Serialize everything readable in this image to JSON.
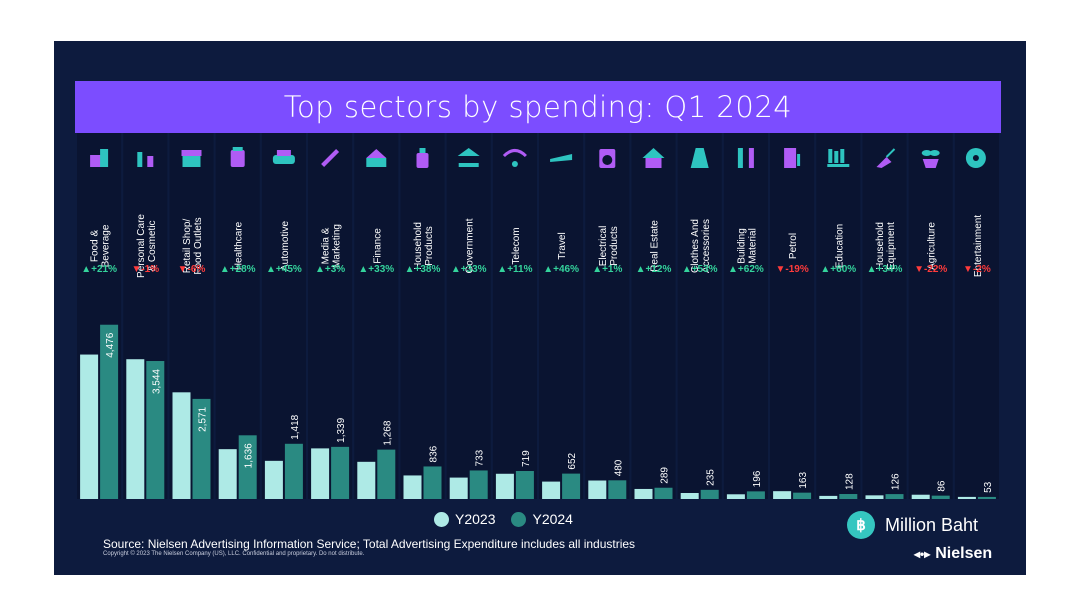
{
  "title": "Top sectors by spending: Q1 2024",
  "source_text": "Source: Nielsen Advertising Information Service; Total Advertising Expenditure includes all industries",
  "copyright_text": "Copyright © 2023 The Nielsen Company (US), LLC. Confidential and proprietary. Do not distribute.",
  "unit_label": "Million Baht",
  "currency_symbol": "฿",
  "brand": "Nielsen",
  "colors": {
    "y2023": "#aeeae6",
    "y2024": "#2a8a82",
    "title_bar": "#7c4dff",
    "background": "#0d1b3e",
    "up": "#34d39c",
    "down": "#ff3b3b",
    "icon": "#2ec4c0",
    "icon_accent": "#b05cf5"
  },
  "chart_data": {
    "type": "bar",
    "title": "Top sectors by spending: Q1 2024",
    "categories": [
      [
        "Food &",
        "Beverage"
      ],
      [
        "Personal Care",
        "& Cosmetic"
      ],
      [
        "Retail Shop/",
        "Food Outlets"
      ],
      [
        "Healthcare"
      ],
      [
        "Automotive"
      ],
      [
        "Media &",
        "Marketing"
      ],
      [
        "Finance"
      ],
      [
        "Household",
        "Products"
      ],
      [
        "Government"
      ],
      [
        "Telecom"
      ],
      [
        "Travel"
      ],
      [
        "Electrical",
        "Products"
      ],
      [
        "Real Estate"
      ],
      [
        "Clothes And",
        "Accessories"
      ],
      [
        "Building",
        "Material"
      ],
      [
        "Petrol"
      ],
      [
        "Education"
      ],
      [
        "Household",
        "Equipment"
      ],
      [
        "Agriculture"
      ],
      [
        "Entertainment"
      ]
    ],
    "icons": [
      "food-drink-icon",
      "cosmetics-icon",
      "store-icon",
      "medicine-icon",
      "car-icon",
      "megaphone-icon",
      "credit-card-icon",
      "detergent-icon",
      "government-building-icon",
      "wifi-icon",
      "airplane-icon",
      "washing-machine-icon",
      "house-icon",
      "dress-icon",
      "tools-icon",
      "fuel-pump-icon",
      "books-icon",
      "broom-icon",
      "plant-icon",
      "film-reel-icon"
    ],
    "changes": [
      "+21%",
      "-1%",
      "-6%",
      "+28%",
      "+45%",
      "+3%",
      "+33%",
      "+38%",
      "+33%",
      "+11%",
      "+46%",
      "+1%",
      "+12%",
      "+53%",
      "+62%",
      "-19%",
      "+60%",
      "+34%",
      "-22%",
      "-2%"
    ],
    "series": [
      {
        "name": "Y2023",
        "values": [
          3710,
          3590,
          2740,
          1280,
          980,
          1300,
          955,
          605,
          550,
          648,
          447,
          475,
          258,
          154,
          121,
          201,
          80,
          94,
          110,
          54
        ]
      },
      {
        "name": "Y2024",
        "values": [
          4476,
          3544,
          2571,
          1636,
          1418,
          1339,
          1268,
          836,
          733,
          719,
          652,
          480,
          289,
          235,
          196,
          163,
          128,
          126,
          86,
          53
        ]
      }
    ],
    "value_labels": [
      "4,476",
      "3,544",
      "2,571",
      "1,636",
      "1,418",
      "1,339",
      "1,268",
      "836",
      "733",
      "719",
      "652",
      "480",
      "289",
      "235",
      "196",
      "163",
      "128",
      "126",
      "86",
      "53"
    ],
    "ylim": [
      0,
      4700
    ],
    "legend": "bottom-center"
  }
}
